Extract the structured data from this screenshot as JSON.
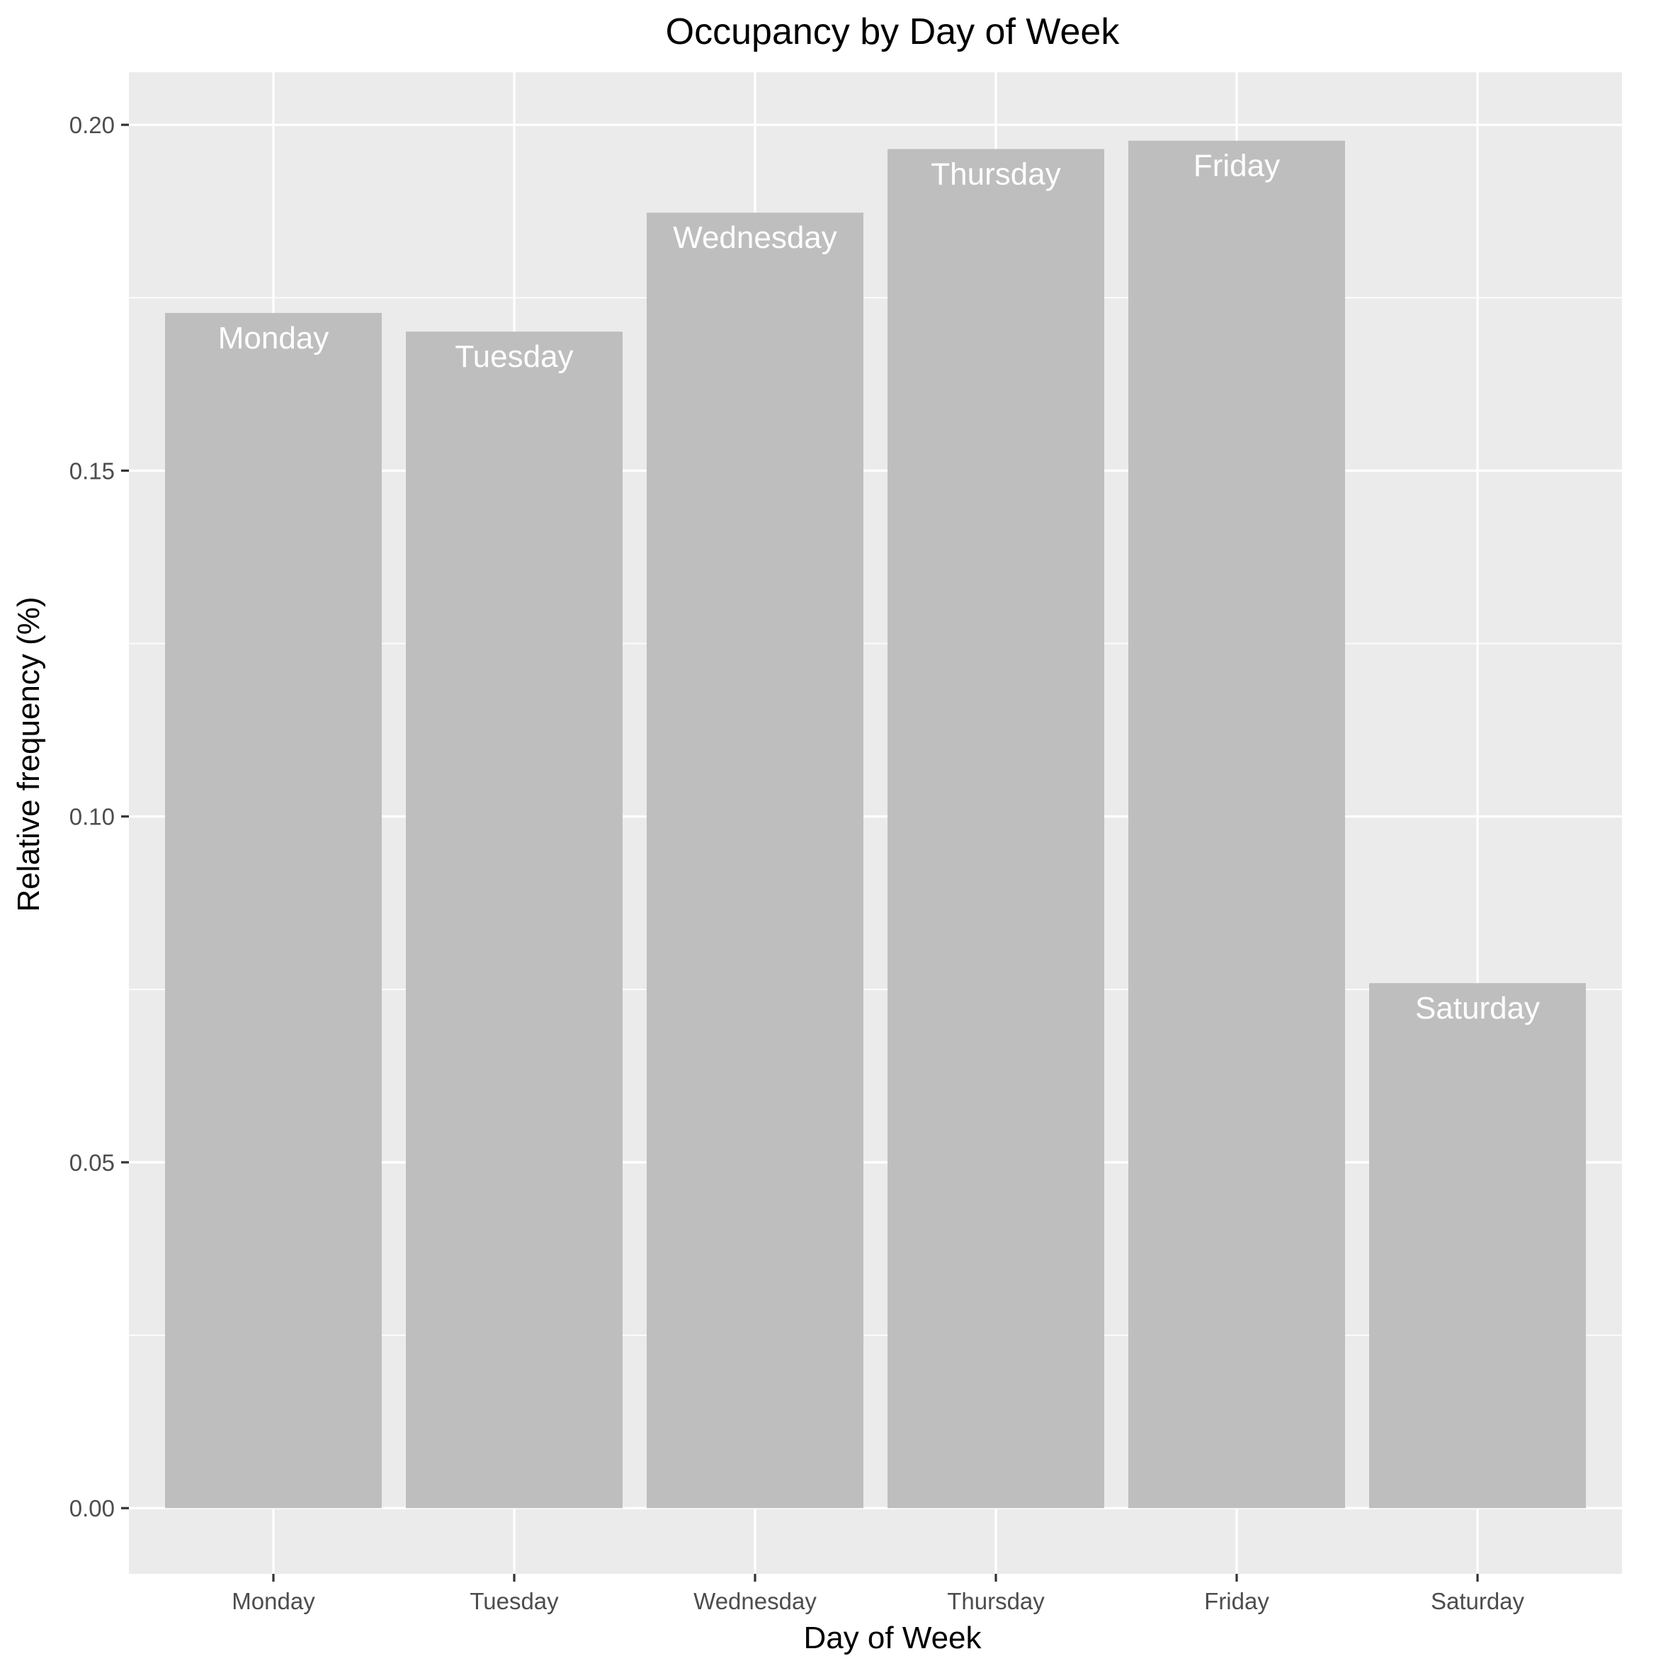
{
  "chart_data": {
    "type": "bar",
    "title": "Occupancy by Day of Week",
    "xlabel": "Day of Week",
    "ylabel": "Relative frequency (%)",
    "categories": [
      "Monday",
      "Tuesday",
      "Wednesday",
      "Thursday",
      "Friday",
      "Saturday"
    ],
    "values": [
      0.1728,
      0.1701,
      0.1873,
      0.1965,
      0.1977,
      0.0759
    ],
    "bar_labels": [
      "Monday",
      "Tuesday",
      "Wednesday",
      "Thursday",
      "Friday",
      "Saturday"
    ],
    "ylim": [
      -0.0095,
      0.2076
    ],
    "yticks": [
      0.0,
      0.05,
      0.1,
      0.15,
      0.2
    ],
    "ytick_labels": [
      "0.00",
      "0.05",
      "0.10",
      "0.15",
      "0.20"
    ],
    "yminor": [
      0.025,
      0.075,
      0.125,
      0.175
    ],
    "grid": true,
    "legend": "none",
    "colors": {
      "panel_background": "#ebebeb",
      "grid": "#ffffff",
      "bar_fill": "#bebebe",
      "bar_label": "#ffffff",
      "tick_label": "#4d4d4d",
      "tick_mark": "#333333",
      "text": "#000000"
    }
  }
}
